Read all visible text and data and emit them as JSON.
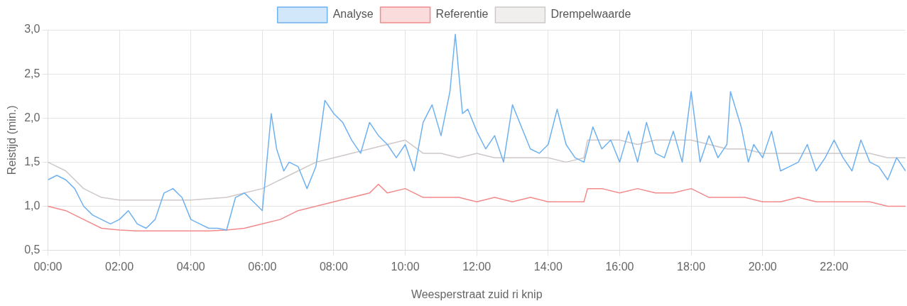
{
  "chart_data": {
    "type": "line",
    "xlabel": "Weesperstraat zuid ri knip",
    "ylabel": "Reistijd (min.)",
    "xlim": [
      0,
      24
    ],
    "ylim": [
      0.5,
      3
    ],
    "xticks": [
      {
        "value": 0,
        "label": "00:00"
      },
      {
        "value": 2,
        "label": "02:00"
      },
      {
        "value": 4,
        "label": "04:00"
      },
      {
        "value": 6,
        "label": "06:00"
      },
      {
        "value": 8,
        "label": "08:00"
      },
      {
        "value": 10,
        "label": "10:00"
      },
      {
        "value": 12,
        "label": "12:00"
      },
      {
        "value": 14,
        "label": "14:00"
      },
      {
        "value": 16,
        "label": "16:00"
      },
      {
        "value": 18,
        "label": "18:00"
      },
      {
        "value": 20,
        "label": "20:00"
      },
      {
        "value": 22,
        "label": "22:00"
      }
    ],
    "yticks": [
      {
        "value": 0.5,
        "label": "0,5"
      },
      {
        "value": 1,
        "label": "1,0"
      },
      {
        "value": 1.5,
        "label": "1,5"
      },
      {
        "value": 2,
        "label": "2,0"
      },
      {
        "value": 2.5,
        "label": "2,5"
      },
      {
        "value": 3,
        "label": "3,0"
      }
    ],
    "grid": true,
    "legend": "top",
    "marker": "none",
    "line_style": "solid",
    "series": [
      {
        "name": "Analyse",
        "color": "#6eb1f0",
        "x": [
          0,
          0.25,
          0.5,
          0.75,
          1,
          1.25,
          1.5,
          1.75,
          2,
          2.25,
          2.5,
          2.75,
          3,
          3.25,
          3.5,
          3.75,
          4,
          4.25,
          4.5,
          4.75,
          5,
          5.25,
          5.5,
          5.75,
          6,
          6.25,
          6.4,
          6.6,
          6.75,
          7,
          7.25,
          7.5,
          7.75,
          8,
          8.25,
          8.5,
          8.75,
          9,
          9.25,
          9.5,
          9.75,
          10,
          10.25,
          10.5,
          10.75,
          11,
          11.25,
          11.4,
          11.6,
          11.75,
          12,
          12.25,
          12.5,
          12.75,
          13,
          13.25,
          13.5,
          13.75,
          14,
          14.25,
          14.5,
          14.75,
          15,
          15.25,
          15.5,
          15.75,
          16,
          16.25,
          16.5,
          16.75,
          17,
          17.25,
          17.5,
          17.75,
          18,
          18.25,
          18.5,
          18.75,
          19,
          19.1,
          19.4,
          19.6,
          19.75,
          20,
          20.25,
          20.5,
          20.75,
          21,
          21.25,
          21.5,
          21.75,
          22,
          22.25,
          22.5,
          22.75,
          23,
          23.25,
          23.5,
          23.75,
          24
        ],
        "values": [
          1.3,
          1.35,
          1.3,
          1.2,
          1.0,
          0.9,
          0.85,
          0.8,
          0.85,
          0.95,
          0.8,
          0.75,
          0.85,
          1.15,
          1.2,
          1.1,
          0.85,
          0.8,
          0.75,
          0.75,
          0.73,
          1.1,
          1.15,
          1.05,
          0.95,
          2.05,
          1.65,
          1.4,
          1.5,
          1.45,
          1.2,
          1.45,
          2.2,
          2.05,
          1.95,
          1.75,
          1.6,
          1.95,
          1.8,
          1.7,
          1.55,
          1.7,
          1.4,
          1.95,
          2.15,
          1.8,
          2.3,
          2.95,
          2.05,
          2.1,
          1.85,
          1.65,
          1.8,
          1.5,
          2.15,
          1.9,
          1.65,
          1.6,
          1.7,
          2.1,
          1.7,
          1.55,
          1.5,
          1.9,
          1.65,
          1.75,
          1.5,
          1.85,
          1.5,
          1.95,
          1.6,
          1.55,
          1.85,
          1.5,
          2.3,
          1.5,
          1.8,
          1.55,
          1.7,
          2.3,
          1.9,
          1.5,
          1.7,
          1.55,
          1.85,
          1.4,
          1.45,
          1.5,
          1.7,
          1.4,
          1.55,
          1.75,
          1.55,
          1.4,
          1.75,
          1.5,
          1.45,
          1.3,
          1.55,
          1.4
        ]
      },
      {
        "name": "Referentie",
        "color": "#f28a8a",
        "x": [
          0,
          0.5,
          1,
          1.5,
          2,
          2.5,
          3,
          3.5,
          4,
          4.5,
          5,
          5.5,
          6,
          6.5,
          7,
          7.5,
          8,
          8.5,
          9,
          9.25,
          9.5,
          10,
          10.5,
          11,
          11.5,
          12,
          12.5,
          13,
          13.5,
          14,
          14.5,
          15,
          15.1,
          15.5,
          16,
          16.5,
          17,
          17.5,
          18,
          18.5,
          19,
          19.5,
          20,
          20.5,
          21,
          21.5,
          22,
          22.5,
          23,
          23.5,
          24
        ],
        "values": [
          1.0,
          0.95,
          0.85,
          0.75,
          0.73,
          0.72,
          0.72,
          0.72,
          0.72,
          0.72,
          0.73,
          0.75,
          0.8,
          0.85,
          0.95,
          1.0,
          1.05,
          1.1,
          1.15,
          1.25,
          1.15,
          1.2,
          1.1,
          1.1,
          1.1,
          1.05,
          1.1,
          1.05,
          1.1,
          1.05,
          1.05,
          1.05,
          1.2,
          1.2,
          1.15,
          1.2,
          1.15,
          1.15,
          1.2,
          1.1,
          1.1,
          1.1,
          1.05,
          1.05,
          1.1,
          1.05,
          1.05,
          1.05,
          1.05,
          1.0,
          1.0
        ]
      },
      {
        "name": "Drempelwaarde",
        "color": "#cfc8c8",
        "x": [
          0,
          0.5,
          1,
          1.5,
          2,
          3,
          4,
          5,
          5.5,
          6,
          6.5,
          7,
          7.5,
          8,
          8.5,
          9,
          9.5,
          10,
          10.5,
          11,
          11.5,
          12,
          12.5,
          13,
          13.5,
          14,
          14.5,
          15,
          15.1,
          15.5,
          16,
          16.5,
          17,
          17.5,
          18,
          18.5,
          19,
          19.5,
          20,
          20.5,
          21,
          21.5,
          22,
          22.5,
          23,
          23.5,
          24
        ],
        "values": [
          1.5,
          1.4,
          1.2,
          1.1,
          1.07,
          1.07,
          1.07,
          1.1,
          1.15,
          1.2,
          1.3,
          1.4,
          1.5,
          1.55,
          1.6,
          1.65,
          1.7,
          1.75,
          1.6,
          1.6,
          1.55,
          1.6,
          1.55,
          1.55,
          1.55,
          1.55,
          1.5,
          1.55,
          1.75,
          1.75,
          1.75,
          1.7,
          1.75,
          1.75,
          1.75,
          1.7,
          1.65,
          1.65,
          1.6,
          1.6,
          1.6,
          1.6,
          1.6,
          1.6,
          1.6,
          1.55,
          1.55
        ]
      }
    ]
  }
}
